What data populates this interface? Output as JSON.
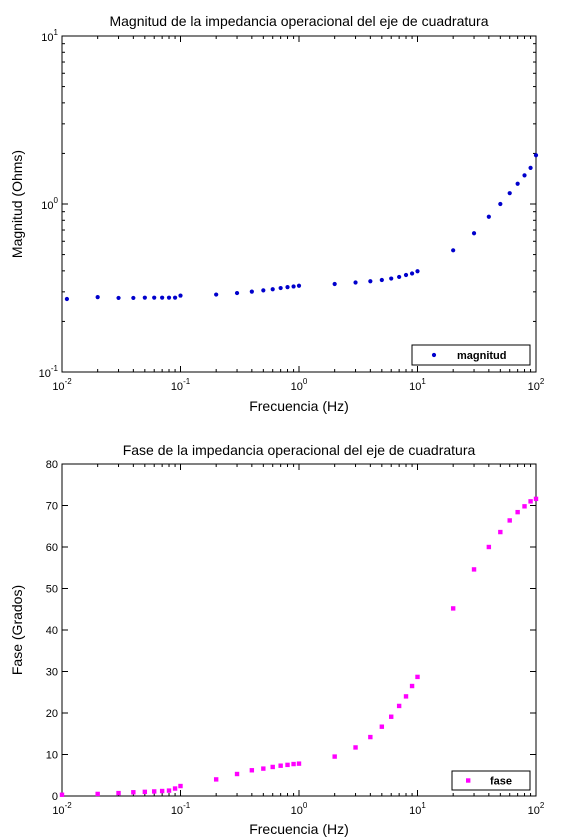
{
  "chart_data": [
    {
      "type": "scatter",
      "title": "Magnitud de la impedancia operacional del eje de cuadratura",
      "xlabel": "Frecuencia (Hz)",
      "ylabel": "Magnitud (Ohms)",
      "xscale": "log",
      "yscale": "log",
      "xlim": [
        0.01,
        100
      ],
      "ylim": [
        0.1,
        10
      ],
      "xticks": [
        {
          "base": "10",
          "exp": "-2"
        },
        {
          "base": "10",
          "exp": "-1"
        },
        {
          "base": "10",
          "exp": "0"
        },
        {
          "base": "10",
          "exp": "1"
        },
        {
          "base": "10",
          "exp": "2"
        }
      ],
      "yticks": [
        {
          "base": "10",
          "exp": "-1"
        },
        {
          "base": "10",
          "exp": "0"
        },
        {
          "base": "10",
          "exp": "1"
        }
      ],
      "grid": false,
      "legend": "bottom-right",
      "color": "#0000cc",
      "marker": "dot",
      "series": [
        {
          "name": "magnitud",
          "x": [
            0.011,
            0.02,
            0.03,
            0.04,
            0.05,
            0.06,
            0.07,
            0.08,
            0.09,
            0.1,
            0.2,
            0.3,
            0.4,
            0.5,
            0.6,
            0.7,
            0.8,
            0.9,
            1,
            2,
            3,
            4,
            5,
            6,
            7,
            8,
            9,
            10,
            20,
            30,
            40,
            50,
            60,
            70,
            80,
            90,
            100
          ],
          "y": [
            0.272,
            0.279,
            0.276,
            0.276,
            0.277,
            0.277,
            0.277,
            0.277,
            0.277,
            0.285,
            0.289,
            0.295,
            0.301,
            0.306,
            0.311,
            0.316,
            0.32,
            0.323,
            0.326,
            0.334,
            0.341,
            0.347,
            0.353,
            0.36,
            0.368,
            0.378,
            0.386,
            0.398,
            0.53,
            0.67,
            0.84,
            1.0,
            1.16,
            1.32,
            1.48,
            1.64,
            1.95
          ]
        }
      ]
    },
    {
      "type": "scatter",
      "title": "Fase de la impedancia operacional del eje de cuadratura",
      "xlabel": "Frecuencia (Hz)",
      "ylabel": "Fase (Grados)",
      "xscale": "log",
      "yscale": "linear",
      "xlim": [
        0.01,
        100
      ],
      "ylim": [
        0,
        80
      ],
      "xticks": [
        {
          "base": "10",
          "exp": "-2"
        },
        {
          "base": "10",
          "exp": "-1"
        },
        {
          "base": "10",
          "exp": "0"
        },
        {
          "base": "10",
          "exp": "1"
        },
        {
          "base": "10",
          "exp": "2"
        }
      ],
      "yticks": [
        "0",
        "10",
        "20",
        "30",
        "40",
        "50",
        "60",
        "70",
        "80"
      ],
      "grid": false,
      "legend": "bottom-right",
      "color": "#ff00ff",
      "marker": "square",
      "series": [
        {
          "name": "fase",
          "x": [
            0.01,
            0.02,
            0.03,
            0.04,
            0.05,
            0.06,
            0.07,
            0.08,
            0.09,
            0.1,
            0.2,
            0.3,
            0.4,
            0.5,
            0.6,
            0.7,
            0.8,
            0.9,
            1,
            2,
            3,
            4,
            5,
            6,
            7,
            8,
            9,
            10,
            20,
            30,
            40,
            50,
            60,
            70,
            80,
            90,
            100
          ],
          "y": [
            0.3,
            0.5,
            0.7,
            0.9,
            1.0,
            1.1,
            1.2,
            1.3,
            1.8,
            2.4,
            4.0,
            5.3,
            6.2,
            6.6,
            7.0,
            7.3,
            7.5,
            7.7,
            7.8,
            9.5,
            11.7,
            14.2,
            16.7,
            19.1,
            21.7,
            24.0,
            26.5,
            28.7,
            45.2,
            54.6,
            60.0,
            63.6,
            66.4,
            68.4,
            69.8,
            71.0,
            71.6
          ]
        }
      ]
    }
  ]
}
